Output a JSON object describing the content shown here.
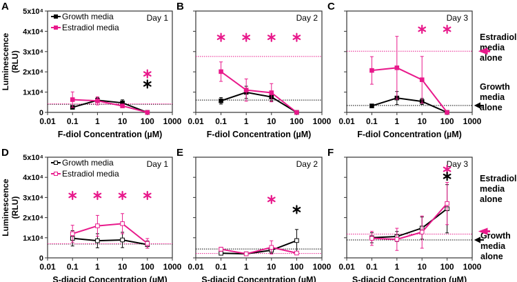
{
  "chart_data": {
    "type": "line",
    "ylabel_line1": "Luminescence",
    "ylabel_line2": "(RLU)",
    "ylim": [
      0,
      50000
    ],
    "xlim": [
      0.01,
      1000
    ],
    "xscale": "log",
    "x_tick_labels": [
      "0.01",
      "0.1",
      "1",
      "10",
      "100",
      "1000"
    ],
    "x_tick_values": [
      0.01,
      0.1,
      1,
      10,
      100,
      1000
    ],
    "y_tick_labels": [
      "0",
      "1x10⁴",
      "2x10⁴",
      "3x10⁴",
      "4x10⁴",
      "5x10⁴"
    ],
    "y_tick_values": [
      0,
      10000,
      20000,
      30000,
      40000,
      50000
    ],
    "legend": [
      "Growth media",
      "Estradiol media"
    ],
    "colors": {
      "growth": "#000000",
      "estradiol": "#e8198b"
    },
    "side_labels": {
      "estradiol": [
        "Estradiol",
        "media",
        "alone"
      ],
      "growth": [
        "Growth",
        "media",
        "alone"
      ]
    },
    "panels": [
      {
        "label": "A",
        "day": "Day 1",
        "xlabel": "F-diol Concentration (µM)",
        "marker": "filled",
        "legend": true,
        "y_axis_labels": true,
        "side_labels": false,
        "x": [
          0.1,
          1,
          10,
          100
        ],
        "growth": {
          "y": [
            2500,
            6000,
            4700,
            0
          ],
          "err": [
            600,
            1200,
            1500,
            200
          ]
        },
        "estradiol": {
          "y": [
            6300,
            5700,
            3200,
            0
          ],
          "err": [
            3800,
            2000,
            800,
            200
          ]
        },
        "baseline_growth": 4000,
        "baseline_estradiol": 4200,
        "asterisks": [
          {
            "x": 100,
            "y": 19000,
            "color": "estradiol"
          },
          {
            "x": 100,
            "y": 14000,
            "color": "growth"
          }
        ]
      },
      {
        "label": "B",
        "day": "Day 2",
        "xlabel": "F-diol Concentration (µM)",
        "marker": "filled",
        "legend": false,
        "y_axis_labels": false,
        "side_labels": false,
        "x": [
          0.1,
          1,
          10,
          100
        ],
        "growth": {
          "y": [
            5700,
            9900,
            7600,
            0
          ],
          "err": [
            1600,
            3000,
            2000,
            200
          ]
        },
        "estradiol": {
          "y": [
            20100,
            11000,
            9700,
            0
          ],
          "err": [
            4800,
            5500,
            4500,
            200
          ]
        },
        "baseline_growth": 6100,
        "baseline_estradiol": 27600,
        "asterisks": [
          {
            "x": 0.1,
            "y": 37000,
            "color": "estradiol"
          },
          {
            "x": 1,
            "y": 37000,
            "color": "estradiol"
          },
          {
            "x": 10,
            "y": 37000,
            "color": "estradiol"
          },
          {
            "x": 100,
            "y": 37000,
            "color": "estradiol"
          }
        ]
      },
      {
        "label": "C",
        "day": "Day 3",
        "xlabel": "F-diol Concentration (µM)",
        "marker": "filled",
        "legend": false,
        "y_axis_labels": false,
        "side_labels": true,
        "x": [
          0.1,
          1,
          10,
          100
        ],
        "growth": {
          "y": [
            3200,
            7100,
            5400,
            0
          ],
          "err": [
            500,
            3200,
            1500,
            200
          ]
        },
        "estradiol": {
          "y": [
            20700,
            22000,
            16100,
            0
          ],
          "err": [
            6800,
            15500,
            11500,
            200
          ]
        },
        "baseline_growth": 3400,
        "baseline_estradiol": 30200,
        "asterisks": [
          {
            "x": 10,
            "y": 41000,
            "color": "estradiol"
          },
          {
            "x": 100,
            "y": 41000,
            "color": "estradiol"
          }
        ]
      },
      {
        "label": "D",
        "day": "Day 1",
        "xlabel": "S-diacid Concentration (µM)",
        "marker": "open",
        "legend": true,
        "y_axis_labels": true,
        "side_labels": false,
        "x": [
          0.1,
          1,
          10,
          100
        ],
        "growth": {
          "y": [
            9700,
            8500,
            8900,
            6600
          ],
          "err": [
            3800,
            3500,
            3800,
            1800
          ]
        },
        "estradiol": {
          "y": [
            12000,
            15900,
            17000,
            7200
          ],
          "err": [
            4200,
            5200,
            5000,
            2400
          ]
        },
        "baseline_growth": 6900,
        "baseline_estradiol": 7000,
        "asterisks": [
          {
            "x": 0.1,
            "y": 31000,
            "color": "estradiol"
          },
          {
            "x": 1,
            "y": 31000,
            "color": "estradiol"
          },
          {
            "x": 10,
            "y": 31000,
            "color": "estradiol"
          },
          {
            "x": 100,
            "y": 31000,
            "color": "estradiol"
          }
        ]
      },
      {
        "label": "E",
        "day": "Day 2",
        "xlabel": "S-diacid Concentration (µM)",
        "marker": "open",
        "legend": false,
        "y_axis_labels": false,
        "side_labels": false,
        "x": [
          0.1,
          1,
          10,
          100
        ],
        "growth": {
          "y": [
            2300,
            2000,
            3800,
            8600
          ],
          "err": [
            900,
            400,
            1500,
            5500
          ]
        },
        "estradiol": {
          "y": [
            4300,
            2000,
            5200,
            2400
          ],
          "err": [
            1000,
            400,
            3300,
            800
          ]
        },
        "baseline_growth": 4400,
        "baseline_estradiol": 2200,
        "asterisks": [
          {
            "x": 10,
            "y": 29000,
            "color": "estradiol"
          },
          {
            "x": 100,
            "y": 24000,
            "color": "growth"
          }
        ]
      },
      {
        "label": "F",
        "day": "Day 3",
        "xlabel": "S-diacid Concentration (µM)",
        "marker": "open",
        "legend": false,
        "y_axis_labels": false,
        "side_labels": true,
        "x": [
          0.1,
          1,
          10,
          100
        ],
        "growth": {
          "y": [
            10000,
            10600,
            14800,
            24400
          ],
          "err": [
            2500,
            2500,
            5500,
            12000
          ]
        },
        "estradiol": {
          "y": [
            9700,
            9200,
            12800,
            27000
          ],
          "err": [
            3500,
            5500,
            8000,
            10500
          ]
        },
        "baseline_growth": 8900,
        "baseline_estradiol": 11800,
        "asterisks": [
          {
            "x": 100,
            "y": 44000,
            "color": "estradiol"
          },
          {
            "x": 100,
            "y": 40500,
            "color": "growth"
          }
        ]
      }
    ]
  }
}
